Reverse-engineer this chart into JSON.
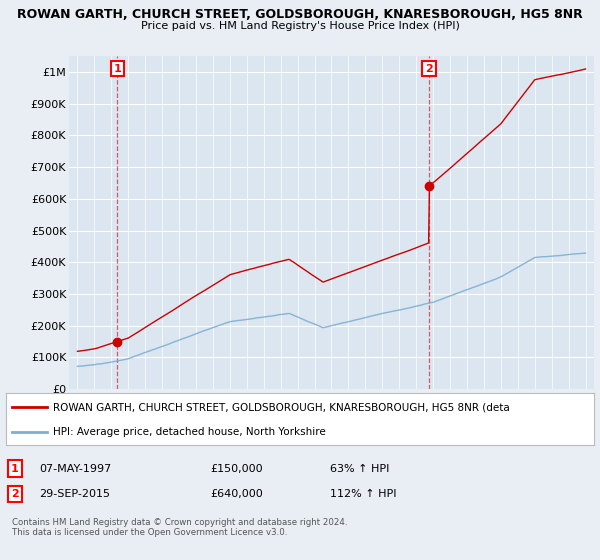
{
  "title1": "ROWAN GARTH, CHURCH STREET, GOLDSBOROUGH, KNARESBOROUGH, HG5 8NR",
  "title2": "Price paid vs. HM Land Registry's House Price Index (HPI)",
  "bg_color": "#e8eef4",
  "plot_bg_color": "#dce6f0",
  "ylim": [
    0,
    1050000
  ],
  "yticks": [
    0,
    100000,
    200000,
    300000,
    400000,
    500000,
    600000,
    700000,
    800000,
    900000,
    1000000
  ],
  "ytick_labels": [
    "£0",
    "£100K",
    "£200K",
    "£300K",
    "£400K",
    "£500K",
    "£600K",
    "£700K",
    "£800K",
    "£900K",
    "£1M"
  ],
  "sale1_year": 1997.35,
  "sale1_price": 150000,
  "sale2_year": 2015.75,
  "sale2_price": 640000,
  "sale1_label": "1",
  "sale2_label": "2",
  "legend_line1": "ROWAN GARTH, CHURCH STREET, GOLDSBOROUGH, KNARESBOROUGH, HG5 8NR (deta",
  "legend_line2": "HPI: Average price, detached house, North Yorkshire",
  "table_row1": [
    "1",
    "07-MAY-1997",
    "£150,000",
    "63% ↑ HPI"
  ],
  "table_row2": [
    "2",
    "29-SEP-2015",
    "£640,000",
    "112% ↑ HPI"
  ],
  "footnote": "Contains HM Land Registry data © Crown copyright and database right 2024.\nThis data is licensed under the Open Government Licence v3.0.",
  "red_line_color": "#cc0000",
  "blue_line_color": "#7bafd4",
  "xmin": 1994.5,
  "xmax": 2025.5,
  "xtick_start": 1995,
  "xtick_end": 2025
}
